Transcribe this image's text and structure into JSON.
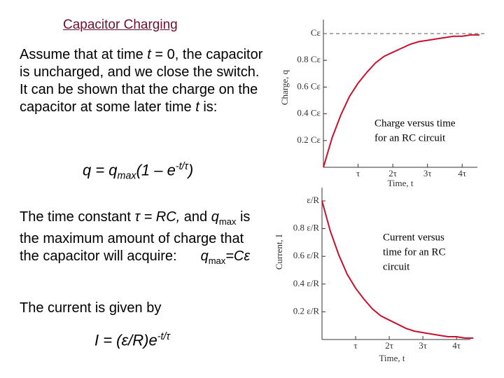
{
  "slide": {
    "title": "Capacitor Charging",
    "paragraph1": [
      "Assume that at time ",
      "t",
      " = 0, the capacitor is uncharged, and we close the switch. It can be shown that the charge on the capacitor at some later time ",
      "t",
      " is:"
    ],
    "equation1": [
      "q = q",
      "max",
      "(1 – e",
      "-t/τ",
      ")"
    ],
    "paragraph2": [
      "The time constant ",
      "τ = RC,",
      " and ",
      "q",
      "max",
      " is the maximum amount of charge that the capacitor will acquire:",
      "q",
      "max",
      "=Cε"
    ],
    "paragraph3": "The current is given by",
    "equation2": [
      "I = (ε/R)e",
      "-t/τ"
    ]
  },
  "chart_data": [
    {
      "type": "line",
      "caption": [
        "Charge versus time",
        "for an RC circuit"
      ],
      "x_label": "Time, t",
      "y_label": "Charge, q",
      "color": "#c8102e",
      "x": [
        0,
        0.25,
        0.5,
        0.75,
        1,
        1.25,
        1.5,
        1.75,
        2,
        2.25,
        2.5,
        2.75,
        3,
        3.25,
        3.5,
        3.75,
        4,
        4.25,
        4.5
      ],
      "values": [
        0,
        0.22,
        0.39,
        0.53,
        0.63,
        0.71,
        0.78,
        0.83,
        0.86,
        0.89,
        0.92,
        0.94,
        0.95,
        0.96,
        0.97,
        0.98,
        0.98,
        0.99,
        0.99
      ],
      "xlim": [
        0,
        4.6
      ],
      "ylim": [
        0,
        1
      ],
      "xticks": [
        {
          "value": 1,
          "label": "τ"
        },
        {
          "value": 2,
          "label": "2τ"
        },
        {
          "value": 3,
          "label": "3τ"
        },
        {
          "value": 4,
          "label": "4τ"
        }
      ],
      "yticks": [
        {
          "value": 0.2,
          "label": "0.2 Cε"
        },
        {
          "value": 0.4,
          "label": "0.4 Cε"
        },
        {
          "value": 0.6,
          "label": "0.6 Cε"
        },
        {
          "value": 0.8,
          "label": "0.8 Cε"
        },
        {
          "value": 1,
          "label": "Cε"
        }
      ],
      "asymptote": 1
    },
    {
      "type": "line",
      "caption": [
        "Current versus",
        "time for an RC",
        "circuit"
      ],
      "x_label": "Time, t",
      "y_label": "Current, I",
      "color": "#c8102e",
      "x": [
        0,
        0.25,
        0.5,
        0.75,
        1,
        1.25,
        1.5,
        1.75,
        2,
        2.25,
        2.5,
        2.75,
        3,
        3.25,
        3.5,
        3.75,
        4,
        4.25,
        4.5
      ],
      "values": [
        1,
        0.78,
        0.61,
        0.47,
        0.37,
        0.29,
        0.22,
        0.17,
        0.14,
        0.11,
        0.08,
        0.06,
        0.05,
        0.04,
        0.03,
        0.02,
        0.02,
        0.01,
        0.01
      ],
      "xlim": [
        0,
        4.6
      ],
      "ylim": [
        0,
        1
      ],
      "xticks": [
        {
          "value": 1,
          "label": "τ"
        },
        {
          "value": 2,
          "label": "2τ"
        },
        {
          "value": 3,
          "label": "3τ"
        },
        {
          "value": 4,
          "label": "4τ"
        }
      ],
      "yticks": [
        {
          "value": 0.2,
          "label": "0.2 ε/R"
        },
        {
          "value": 0.4,
          "label": "0.4 ε/R"
        },
        {
          "value": 0.6,
          "label": "0.6 ε/R"
        },
        {
          "value": 0.8,
          "label": "0.8 ε/R"
        },
        {
          "value": 1,
          "label": "ε/R"
        }
      ]
    }
  ]
}
